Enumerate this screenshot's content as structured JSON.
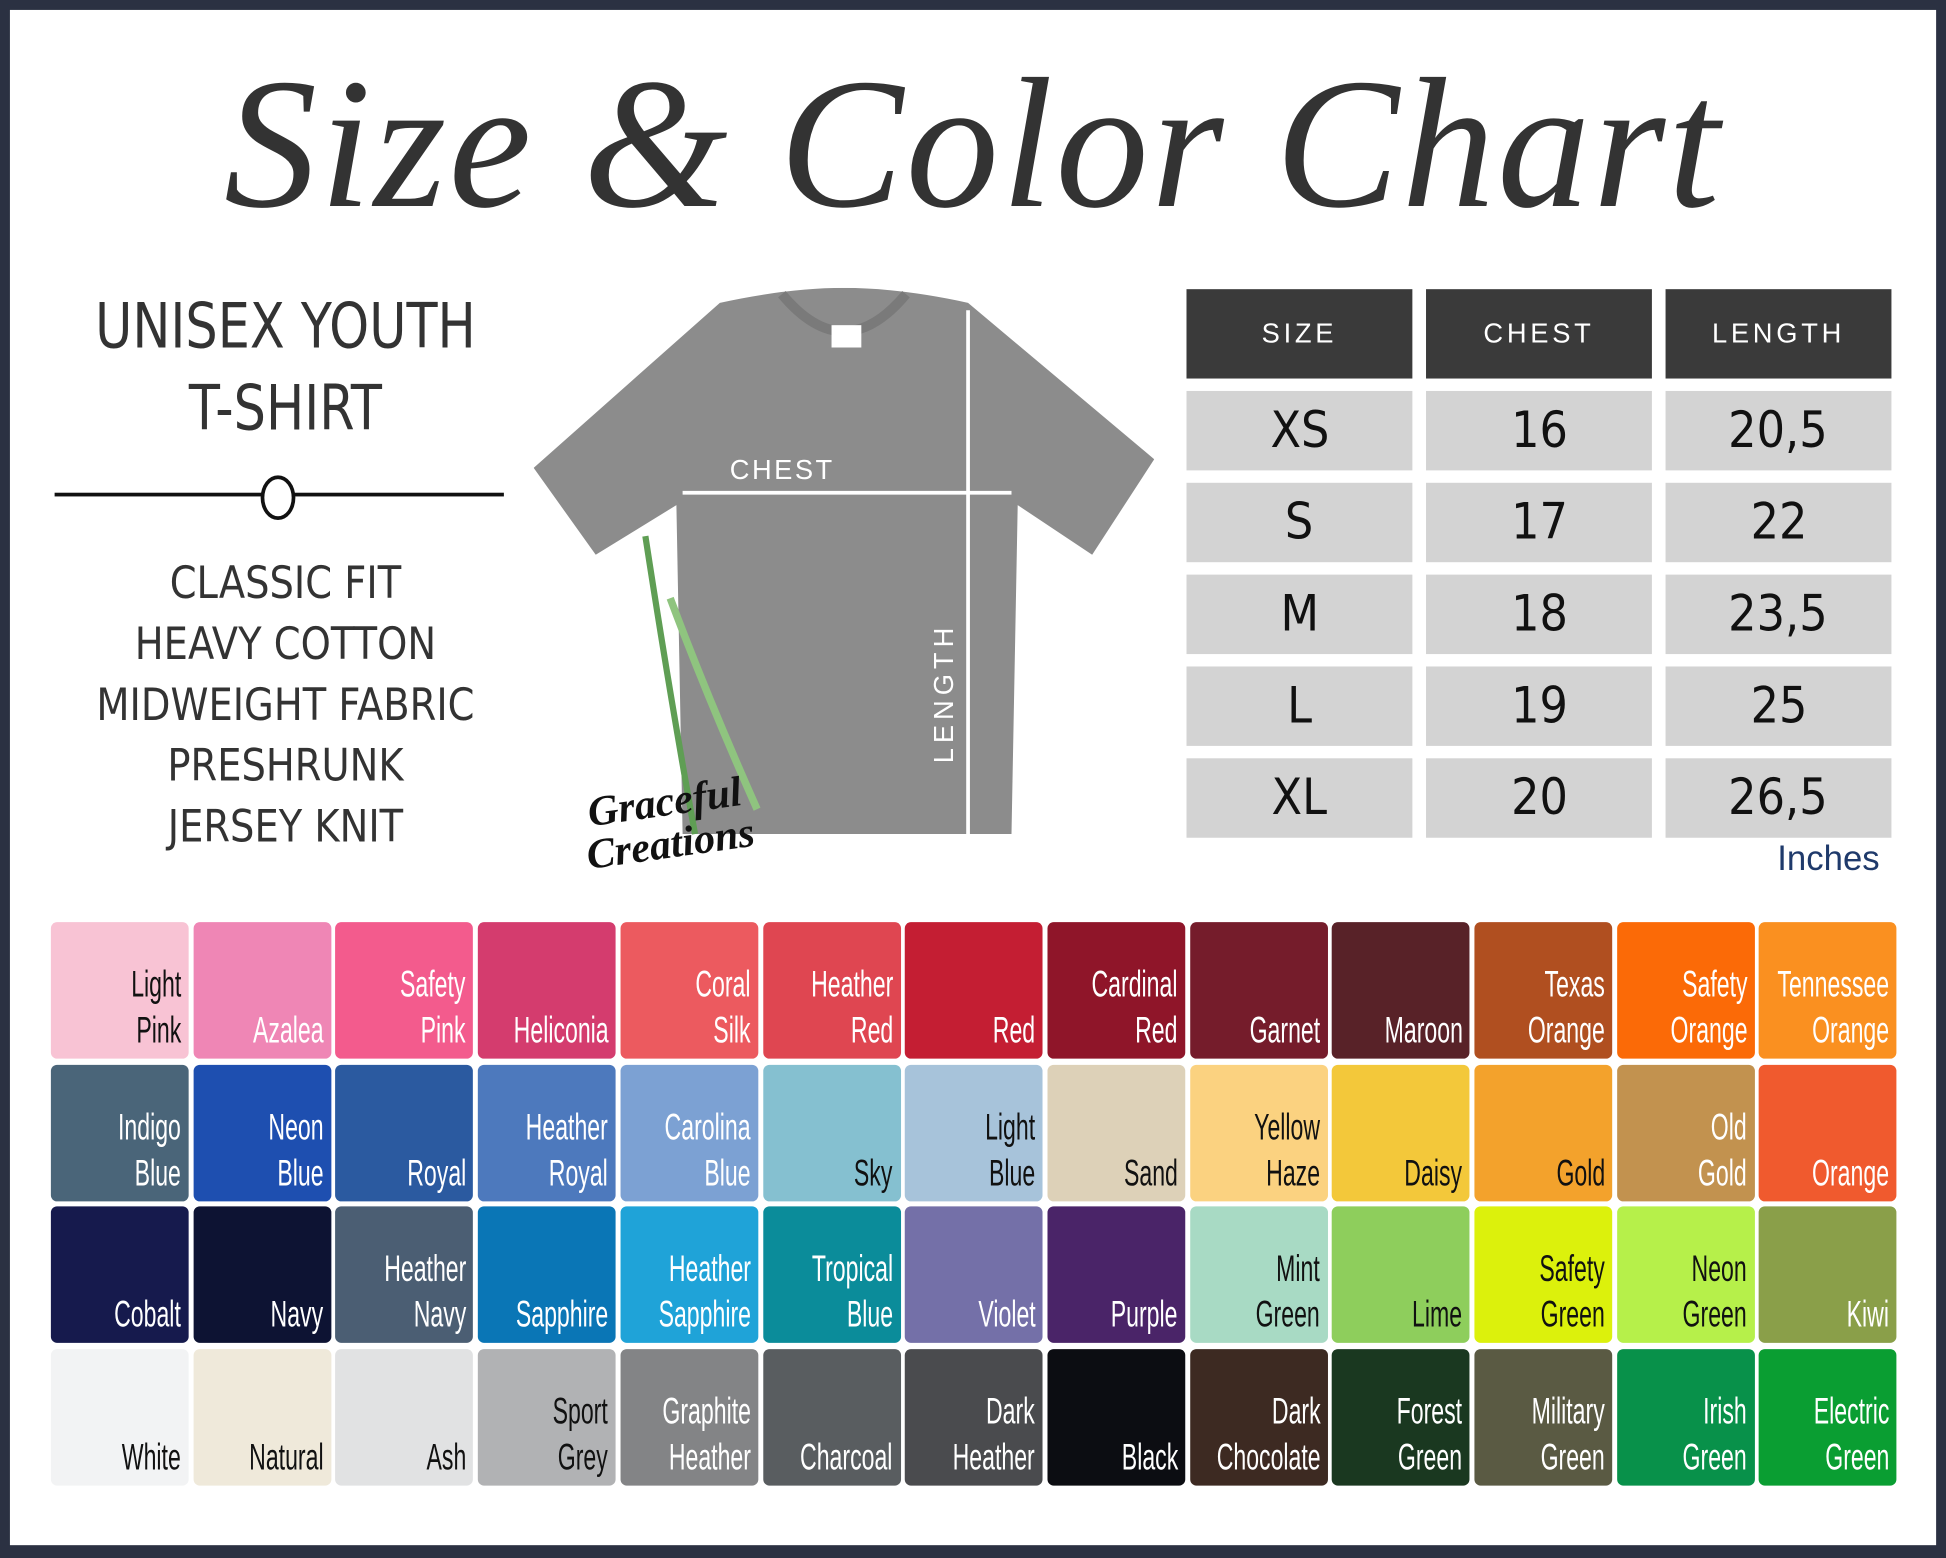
{
  "title": "Size & Color Chart",
  "product": {
    "line1": "UNISEX YOUTH",
    "line2": "T-SHIRT",
    "features": [
      "CLASSIC FIT",
      "HEAVY COTTON",
      "MIDWEIGHT FABRIC",
      "PRESHRUNK",
      "JERSEY KNIT"
    ]
  },
  "shirt": {
    "chest_label": "CHEST",
    "length_label": "LENGTH",
    "color": "#8c8c8c"
  },
  "logo": {
    "line1": "Graceful",
    "line2": "Creations"
  },
  "size_table": {
    "headers": [
      "SIZE",
      "CHEST",
      "LENGTH"
    ],
    "rows": [
      [
        "XS",
        "16",
        "20,5"
      ],
      [
        "S",
        "17",
        "22"
      ],
      [
        "M",
        "18",
        "23,5"
      ],
      [
        "L",
        "19",
        "25"
      ],
      [
        "XL",
        "20",
        "26,5"
      ]
    ],
    "unit": "Inches"
  },
  "colors": [
    {
      "name": [
        "Light",
        "Pink"
      ],
      "hex": "#f8c3d4",
      "dark": true
    },
    {
      "name": [
        "Azalea"
      ],
      "hex": "#ef86b5"
    },
    {
      "name": [
        "Safety",
        "Pink"
      ],
      "hex": "#f35b8d"
    },
    {
      "name": [
        "Heliconia"
      ],
      "hex": "#d43c6e"
    },
    {
      "name": [
        "Coral",
        "Silk"
      ],
      "hex": "#ec5a5f"
    },
    {
      "name": [
        "Heather",
        "Red"
      ],
      "hex": "#df4651"
    },
    {
      "name": [
        "Red"
      ],
      "hex": "#c41e33"
    },
    {
      "name": [
        "Cardinal",
        "Red"
      ],
      "hex": "#8f1529"
    },
    {
      "name": [
        "Garnet"
      ],
      "hex": "#751c2b"
    },
    {
      "name": [
        "Maroon"
      ],
      "hex": "#582228"
    },
    {
      "name": [
        "Texas",
        "Orange"
      ],
      "hex": "#b04f20"
    },
    {
      "name": [
        "Safety",
        "Orange"
      ],
      "hex": "#fb6a07"
    },
    {
      "name": [
        "Tennessee",
        "Orange"
      ],
      "hex": "#fa9020"
    },
    {
      "name": [
        "Indigo",
        "Blue"
      ],
      "hex": "#4a6579"
    },
    {
      "name": [
        "Neon",
        "Blue"
      ],
      "hex": "#1e4fb0"
    },
    {
      "name": [
        "Royal"
      ],
      "hex": "#2b5aa0"
    },
    {
      "name": [
        "Heather",
        "Royal"
      ],
      "hex": "#4d79bd"
    },
    {
      "name": [
        "Carolina",
        "Blue"
      ],
      "hex": "#7ca1d3"
    },
    {
      "name": [
        "Sky"
      ],
      "hex": "#85c0d0",
      "dark": true
    },
    {
      "name": [
        "Light",
        "Blue"
      ],
      "hex": "#a7c3da",
      "dark": true
    },
    {
      "name": [
        "Sand"
      ],
      "hex": "#ddd1b8",
      "dark": true
    },
    {
      "name": [
        "Yellow",
        "Haze"
      ],
      "hex": "#fbd280",
      "dark": true
    },
    {
      "name": [
        "Daisy"
      ],
      "hex": "#f3c83a",
      "dark": true
    },
    {
      "name": [
        "Gold"
      ],
      "hex": "#f3a22c",
      "dark": true
    },
    {
      "name": [
        "Old",
        "Gold"
      ],
      "hex": "#c2924f"
    },
    {
      "name": [
        "Orange"
      ],
      "hex": "#f05a2e"
    },
    {
      "name": [
        "Cobalt"
      ],
      "hex": "#161a4d"
    },
    {
      "name": [
        "Navy"
      ],
      "hex": "#0d1333"
    },
    {
      "name": [
        "Heather",
        "Navy"
      ],
      "hex": "#4b5e73"
    },
    {
      "name": [
        "Sapphire"
      ],
      "hex": "#0a76b6"
    },
    {
      "name": [
        "Heather",
        "Sapphire"
      ],
      "hex": "#1fa3d8"
    },
    {
      "name": [
        "Tropical",
        "Blue"
      ],
      "hex": "#0b8c9a"
    },
    {
      "name": [
        "Violet"
      ],
      "hex": "#7470a8"
    },
    {
      "name": [
        "Purple"
      ],
      "hex": "#4a2468"
    },
    {
      "name": [
        "Mint",
        "Green"
      ],
      "hex": "#a8dac4",
      "dark": true
    },
    {
      "name": [
        "Lime"
      ],
      "hex": "#8ece5c",
      "dark": true
    },
    {
      "name": [
        "Safety",
        "Green"
      ],
      "hex": "#dcf10c",
      "dark": true
    },
    {
      "name": [
        "Neon",
        "Green"
      ],
      "hex": "#b6f04a",
      "dark": true
    },
    {
      "name": [
        "Kiwi"
      ],
      "hex": "#8a9f49"
    },
    {
      "name": [
        "White"
      ],
      "hex": "#f2f3f4",
      "dark": true
    },
    {
      "name": [
        "Natural"
      ],
      "hex": "#efe9da",
      "dark": true
    },
    {
      "name": [
        "Ash"
      ],
      "hex": "#e1e2e3",
      "dark": true
    },
    {
      "name": [
        "Sport",
        "Grey"
      ],
      "hex": "#b1b2b4",
      "dark": true
    },
    {
      "name": [
        "Graphite",
        "Heather"
      ],
      "hex": "#838486"
    },
    {
      "name": [
        "Charcoal"
      ],
      "hex": "#595d60"
    },
    {
      "name": [
        "Dark",
        "Heather"
      ],
      "hex": "#4a4b4e"
    },
    {
      "name": [
        "Black"
      ],
      "hex": "#0c0d12"
    },
    {
      "name": [
        "Dark",
        "Chocolate"
      ],
      "hex": "#3d2a22"
    },
    {
      "name": [
        "Forest",
        "Green"
      ],
      "hex": "#1a3820"
    },
    {
      "name": [
        "Military",
        "Green"
      ],
      "hex": "#5a5a43"
    },
    {
      "name": [
        "Irish",
        "Green"
      ],
      "hex": "#08914a"
    },
    {
      "name": [
        "Electric",
        "Green"
      ],
      "hex": "#0a9e32"
    }
  ]
}
